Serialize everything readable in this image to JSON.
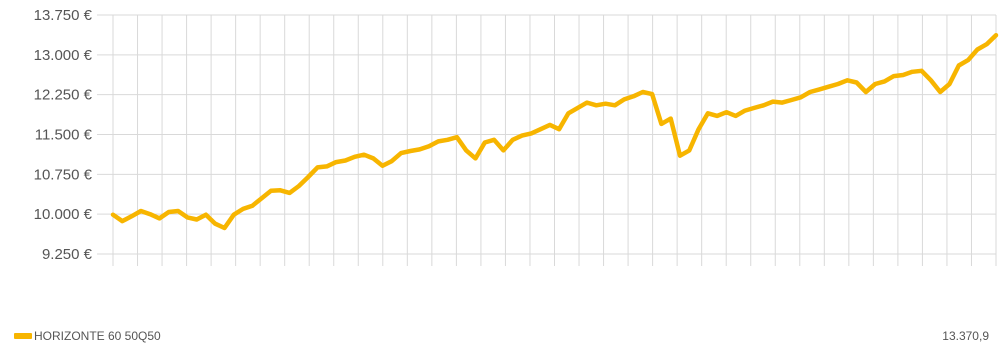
{
  "chart_data": {
    "type": "line",
    "title": "",
    "xlabel": "",
    "ylabel": "",
    "ylim": [
      9250,
      13750
    ],
    "yticks": [
      13750,
      13000,
      12250,
      11500,
      10750,
      10000,
      9250
    ],
    "ytick_labels": [
      "13.750 €",
      "13.000 €",
      "12.250 €",
      "11.500 €",
      "10.750 €",
      "10.000 €",
      "9.250 €"
    ],
    "xlim": [
      0,
      380
    ],
    "grid": true,
    "legend": "bottom-left",
    "colors": {
      "series": "#F7B500",
      "grid": "#d9d9d9",
      "text": "#555555"
    },
    "series": [
      {
        "name": "HORIZONTE 60 50Q50",
        "last_value_label": "13.370,9",
        "x": [
          0,
          4,
          8,
          12,
          16,
          20,
          24,
          28,
          32,
          36,
          40,
          44,
          48,
          52,
          56,
          60,
          64,
          68,
          72,
          76,
          80,
          84,
          88,
          92,
          96,
          100,
          104,
          108,
          112,
          116,
          120,
          124,
          128,
          132,
          136,
          140,
          144,
          148,
          152,
          156,
          160,
          164,
          168,
          172,
          176,
          180,
          184,
          188,
          192,
          196,
          200,
          204,
          208,
          212,
          216,
          220,
          224,
          228,
          232,
          236,
          240,
          244,
          248,
          252,
          256,
          260,
          264,
          268,
          272,
          276,
          280,
          284,
          288,
          292,
          296,
          300,
          304,
          308,
          312,
          316,
          320,
          324,
          328,
          332,
          336,
          340,
          344,
          348,
          352,
          356,
          360,
          364,
          368,
          372,
          376,
          380
        ],
        "y": [
          9990,
          9870,
          9960,
          10060,
          10000,
          9920,
          10040,
          10060,
          9940,
          9900,
          9990,
          9820,
          9740,
          9990,
          10100,
          10160,
          10300,
          10440,
          10450,
          10400,
          10530,
          10700,
          10880,
          10900,
          10980,
          11010,
          11080,
          11120,
          11050,
          10910,
          11000,
          11150,
          11190,
          11220,
          11280,
          11370,
          11400,
          11450,
          11200,
          11050,
          11350,
          11400,
          11200,
          11400,
          11480,
          11520,
          11600,
          11680,
          11600,
          11900,
          12000,
          12100,
          12050,
          12080,
          12050,
          12160,
          12220,
          12300,
          12260,
          11700,
          11800,
          11100,
          11200,
          11600,
          11900,
          11850,
          11920,
          11850,
          11950,
          12000,
          12050,
          12120,
          12100,
          12150,
          12200,
          12300,
          12350,
          12400,
          12450,
          12520,
          12480,
          12300,
          12450,
          12500,
          12600,
          12620,
          12680,
          12700,
          12520,
          12300,
          12450,
          12800,
          12900,
          13100,
          13200,
          13370
        ]
      }
    ]
  }
}
